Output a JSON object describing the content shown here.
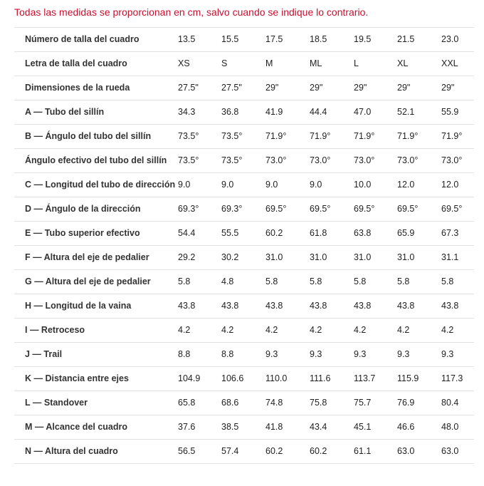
{
  "note": "Todas las medidas se proporcionan en cm, salvo cuando se indique lo contrario.",
  "table": {
    "rows": [
      [
        "Número de talla del cuadro",
        "13.5",
        "15.5",
        "17.5",
        "18.5",
        "19.5",
        "21.5",
        "23.0"
      ],
      [
        "Letra de talla del cuadro",
        "XS",
        "S",
        "M",
        "ML",
        "L",
        "XL",
        "XXL"
      ],
      [
        "Dimensiones de la rueda",
        "27.5\"",
        "27.5\"",
        "29\"",
        "29\"",
        "29\"",
        "29\"",
        "29\""
      ],
      [
        "A — Tubo del sillín",
        "34.3",
        "36.8",
        "41.9",
        "44.4",
        "47.0",
        "52.1",
        "55.9"
      ],
      [
        "B — Ángulo del tubo del sillín",
        "73.5°",
        "73.5°",
        "71.9°",
        "71.9°",
        "71.9°",
        "71.9°",
        "71.9°"
      ],
      [
        "Ángulo efectivo del tubo del sillín",
        "73.5°",
        "73.5°",
        "73.0°",
        "73.0°",
        "73.0°",
        "73.0°",
        "73.0°"
      ],
      [
        "C — Longitud del tubo de dirección",
        "9.0",
        "9.0",
        "9.0",
        "9.0",
        "10.0",
        "12.0",
        "12.0"
      ],
      [
        "D — Ángulo de la dirección",
        "69.3°",
        "69.3°",
        "69.5°",
        "69.5°",
        "69.5°",
        "69.5°",
        "69.5°"
      ],
      [
        "E — Tubo superior efectivo",
        "54.4",
        "55.5",
        "60.2",
        "61.8",
        "63.8",
        "65.9",
        "67.3"
      ],
      [
        "F — Altura del eje de pedalier",
        "29.2",
        "30.2",
        "31.0",
        "31.0",
        "31.0",
        "31.0",
        "31.1"
      ],
      [
        "G — Altura del eje de pedalier",
        "5.8",
        "4.8",
        "5.8",
        "5.8",
        "5.8",
        "5.8",
        "5.8"
      ],
      [
        "H — Longitud de la vaina",
        "43.8",
        "43.8",
        "43.8",
        "43.8",
        "43.8",
        "43.8",
        "43.8"
      ],
      [
        "I — Retroceso",
        "4.2",
        "4.2",
        "4.2",
        "4.2",
        "4.2",
        "4.2",
        "4.2"
      ],
      [
        "J — Trail",
        "8.8",
        "8.8",
        "9.3",
        "9.3",
        "9.3",
        "9.3",
        "9.3"
      ],
      [
        "K — Distancia entre ejes",
        "104.9",
        "106.6",
        "110.0",
        "111.6",
        "113.7",
        "115.9",
        "117.3"
      ],
      [
        "L — Standover",
        "65.8",
        "68.6",
        "74.8",
        "75.8",
        "75.7",
        "76.9",
        "80.4"
      ],
      [
        "M — Alcance del cuadro",
        "37.6",
        "38.5",
        "41.8",
        "43.4",
        "45.1",
        "46.6",
        "48.0"
      ],
      [
        "N — Altura del cuadro",
        "56.5",
        "57.4",
        "60.2",
        "60.2",
        "61.1",
        "63.0",
        "63.0"
      ]
    ]
  }
}
